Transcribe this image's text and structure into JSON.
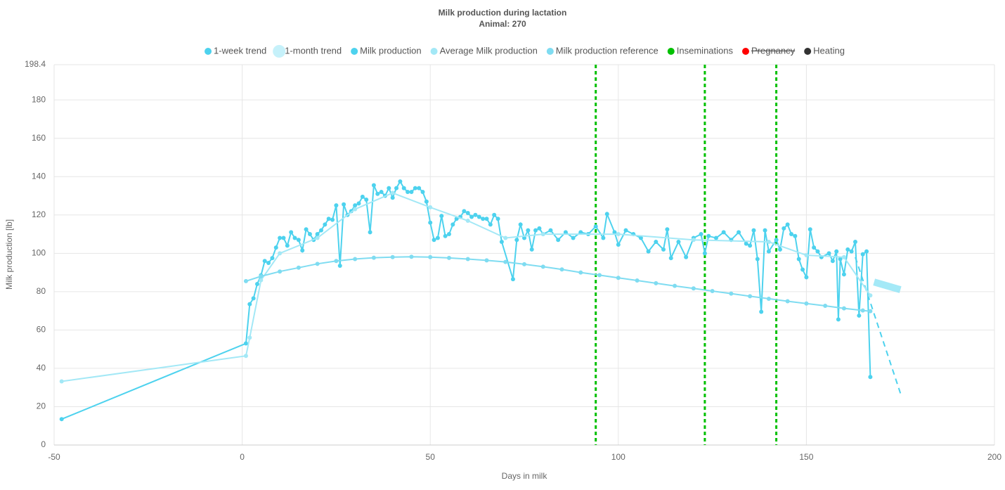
{
  "chart_data": {
    "type": "line",
    "title": "Milk production during lactation",
    "subtitle": "Animal: 270",
    "x_label": "Days in milk",
    "y_label": "Milk production [lb]",
    "xlim": [
      -50,
      200
    ],
    "xticks": [
      -50,
      0,
      50,
      100,
      150,
      200
    ],
    "ylim": [
      0,
      198.4
    ],
    "yticks": [
      0,
      20,
      40,
      60,
      80,
      100,
      120,
      140,
      160,
      180,
      198.4
    ],
    "grid": true,
    "legend": "top",
    "series": [
      {
        "name": "1-week trend",
        "color": "#4dd2ee",
        "style": "dashed",
        "markers": false,
        "x": [
          163,
          175
        ],
        "values": [
          98,
          27
        ]
      },
      {
        "name": "1-month trend",
        "color": "#8de4f5",
        "style": "band",
        "markers": false,
        "x": [
          168,
          175
        ],
        "values": [
          85,
          81
        ]
      },
      {
        "name": "Milk production",
        "color": "#4dd2ee",
        "style": "solid",
        "markers": true,
        "x": [
          -48,
          1,
          2,
          3,
          4,
          5,
          6,
          7,
          8,
          9,
          10,
          11,
          12,
          13,
          14,
          15,
          16,
          17,
          18,
          19,
          20,
          21,
          22,
          23,
          24,
          25,
          26,
          27,
          28,
          29,
          30,
          31,
          32,
          33,
          34,
          35,
          36,
          37,
          38,
          39,
          40,
          41,
          42,
          43,
          44,
          45,
          46,
          47,
          48,
          49,
          50,
          51,
          52,
          53,
          54,
          55,
          56,
          57,
          58,
          59,
          60,
          61,
          62,
          63,
          64,
          65,
          66,
          67,
          68,
          69,
          72,
          73,
          74,
          75,
          76,
          77,
          78,
          79,
          80,
          82,
          84,
          86,
          88,
          90,
          92,
          94,
          96,
          97,
          99,
          100,
          102,
          104,
          106,
          108,
          110,
          112,
          113,
          114,
          116,
          118,
          120,
          122,
          123,
          124,
          126,
          128,
          130,
          132,
          134,
          135,
          136,
          137,
          138,
          139,
          140,
          142,
          143,
          144,
          145,
          146,
          147,
          148,
          149,
          150,
          151,
          152,
          153,
          154,
          156,
          157,
          158,
          158.5,
          159,
          160,
          161,
          162,
          163,
          164,
          165,
          166,
          167
        ],
        "values": [
          13.5,
          53,
          73.5,
          76.5,
          84,
          88.5,
          96,
          95,
          97.5,
          103,
          108,
          108,
          104,
          111,
          108,
          107,
          101.5,
          112.5,
          110,
          107,
          110,
          112,
          115,
          118,
          117.5,
          125,
          93.5,
          125.5,
          120,
          122,
          125,
          126,
          129.5,
          128,
          111,
          135.5,
          131,
          132,
          130,
          134,
          129,
          134,
          137.5,
          134,
          132,
          132,
          134,
          134,
          132,
          127,
          116,
          107,
          108,
          119.5,
          109,
          110,
          115,
          118,
          119,
          122,
          121,
          119,
          120,
          119,
          118,
          118,
          115,
          120,
          118,
          106,
          86.5,
          107,
          115,
          108,
          112,
          102,
          112,
          113,
          110,
          112,
          107,
          111,
          108,
          111,
          110,
          114,
          108,
          120.5,
          111,
          104.5,
          112,
          110,
          108,
          101,
          106,
          102,
          112.5,
          97.5,
          106,
          98,
          108,
          110,
          100,
          109,
          108,
          111,
          107,
          111,
          105,
          104,
          112,
          97,
          69.5,
          112,
          101,
          107,
          102,
          113,
          115,
          110,
          109,
          97,
          91.5,
          87.5,
          112.5,
          103,
          101,
          98,
          100,
          96,
          101,
          65.5,
          97,
          89,
          102,
          101,
          106,
          67.5,
          99.5,
          101,
          35.5
        ]
      },
      {
        "name": "Average Milk production",
        "color": "#a3e8f6",
        "style": "solid",
        "markers": true,
        "x": [
          -48,
          1,
          2,
          5,
          10,
          20,
          30,
          40,
          50,
          60,
          70,
          80,
          100,
          120,
          140,
          150,
          160,
          167
        ],
        "values": [
          33.2,
          46.5,
          56,
          86,
          100,
          108,
          123,
          131.5,
          124,
          117,
          108,
          110,
          110,
          107,
          106,
          99,
          98,
          78
        ]
      },
      {
        "name": "Milk production reference",
        "color": "#7fdcf1",
        "style": "solid",
        "markers": true,
        "x": [
          1,
          5,
          10,
          15,
          20,
          25,
          30,
          35,
          40,
          45,
          50,
          55,
          60,
          65,
          70,
          75,
          80,
          85,
          90,
          95,
          100,
          105,
          110,
          115,
          120,
          125,
          130,
          135,
          140,
          145,
          150,
          155,
          160,
          165,
          167
        ],
        "values": [
          85.5,
          88,
          90.5,
          92.5,
          94.5,
          96,
          97,
          97.7,
          98,
          98.2,
          98,
          97.6,
          97,
          96.3,
          95.5,
          94.3,
          93,
          91.6,
          90,
          88.6,
          87.2,
          85.8,
          84.4,
          83,
          81.7,
          80.3,
          79,
          77.6,
          76.3,
          75,
          73.8,
          72.6,
          71.3,
          70.2,
          69.8
        ]
      }
    ],
    "events": [
      {
        "name": "Inseminations",
        "color": "#00c000",
        "x": [
          94,
          123,
          142
        ]
      },
      {
        "name": "Pregnancy",
        "color": "#ff0000",
        "hidden": true,
        "x": []
      },
      {
        "name": "Heating",
        "color": "#333333",
        "x": []
      }
    ]
  }
}
